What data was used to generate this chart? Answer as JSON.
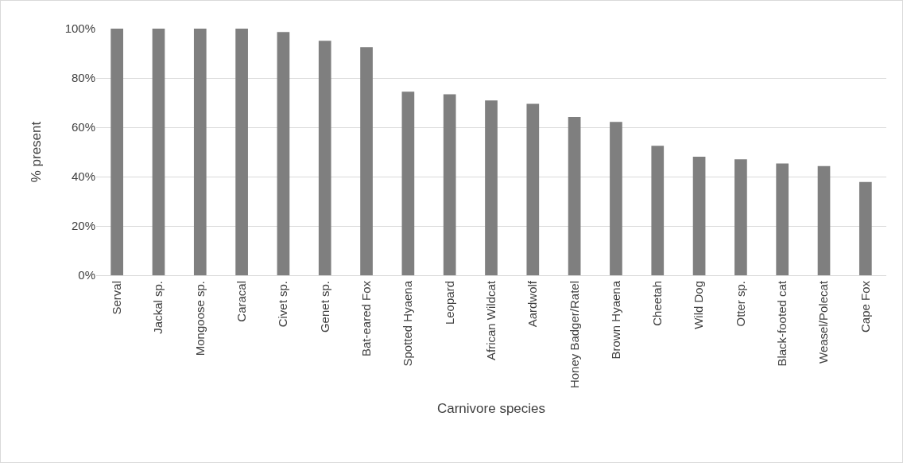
{
  "chart_data": {
    "type": "bar",
    "xlabel": "Carnivore species",
    "ylabel": "% present",
    "categories": [
      "Serval",
      "Jackal sp.",
      "Mongoose sp.",
      "Caracal",
      "Civet sp.",
      "Genet sp.",
      "Bat-eared Fox",
      "Spotted Hyaena",
      "Leopard",
      "African Wildcat",
      "Aardwolf",
      "Honey Badger/Ratel",
      "Brown Hyaena",
      "Cheetah",
      "Wild Dog",
      "Otter sp.",
      "Black-footed cat",
      "Weasel/Polecat",
      "Cape Fox"
    ],
    "values": [
      100,
      100,
      100,
      100,
      98.6,
      95.1,
      92.5,
      74.4,
      73.4,
      70.9,
      69.5,
      64.2,
      62.2,
      52.5,
      48.1,
      47.0,
      45.3,
      44.3,
      37.8
    ],
    "color": "#7f7f7f",
    "ylim": [
      0,
      100
    ],
    "yticks": [
      {
        "value": 0,
        "label": "0%"
      },
      {
        "value": 20,
        "label": "20%"
      },
      {
        "value": 40,
        "label": "40%"
      },
      {
        "value": 60,
        "label": "60%"
      },
      {
        "value": 80,
        "label": "80%"
      },
      {
        "value": 100,
        "label": "100%"
      }
    ],
    "grid": "y",
    "legend": false
  }
}
